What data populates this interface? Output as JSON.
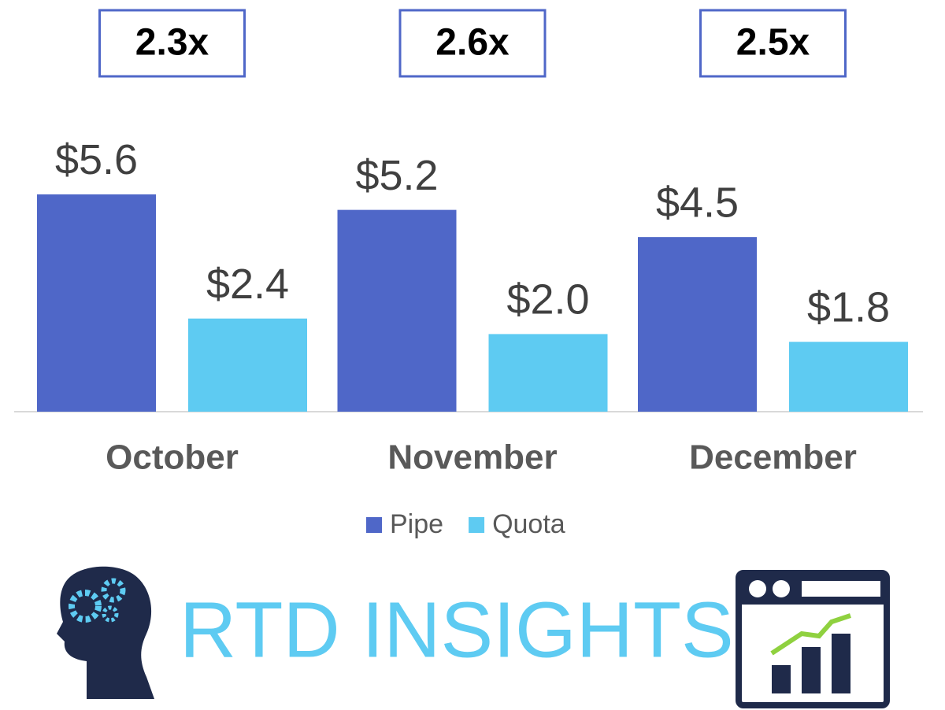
{
  "chart_data": {
    "type": "bar",
    "categories": [
      "October",
      "November",
      "December"
    ],
    "series": [
      {
        "name": "Pipe",
        "color": "#4f67c8",
        "values": [
          5.6,
          5.2,
          4.5
        ],
        "value_labels": [
          "$5.6",
          "$5.2",
          "$4.5"
        ]
      },
      {
        "name": "Quota",
        "color": "#5ecbf2",
        "values": [
          2.4,
          2.0,
          1.8
        ],
        "value_labels": [
          "$2.4",
          "$2.0",
          "$1.8"
        ]
      }
    ],
    "annotations": [
      "2.3x",
      "2.6x",
      "2.5x"
    ],
    "legend": "bottom"
  },
  "brand": "RTD INSIGHTS"
}
